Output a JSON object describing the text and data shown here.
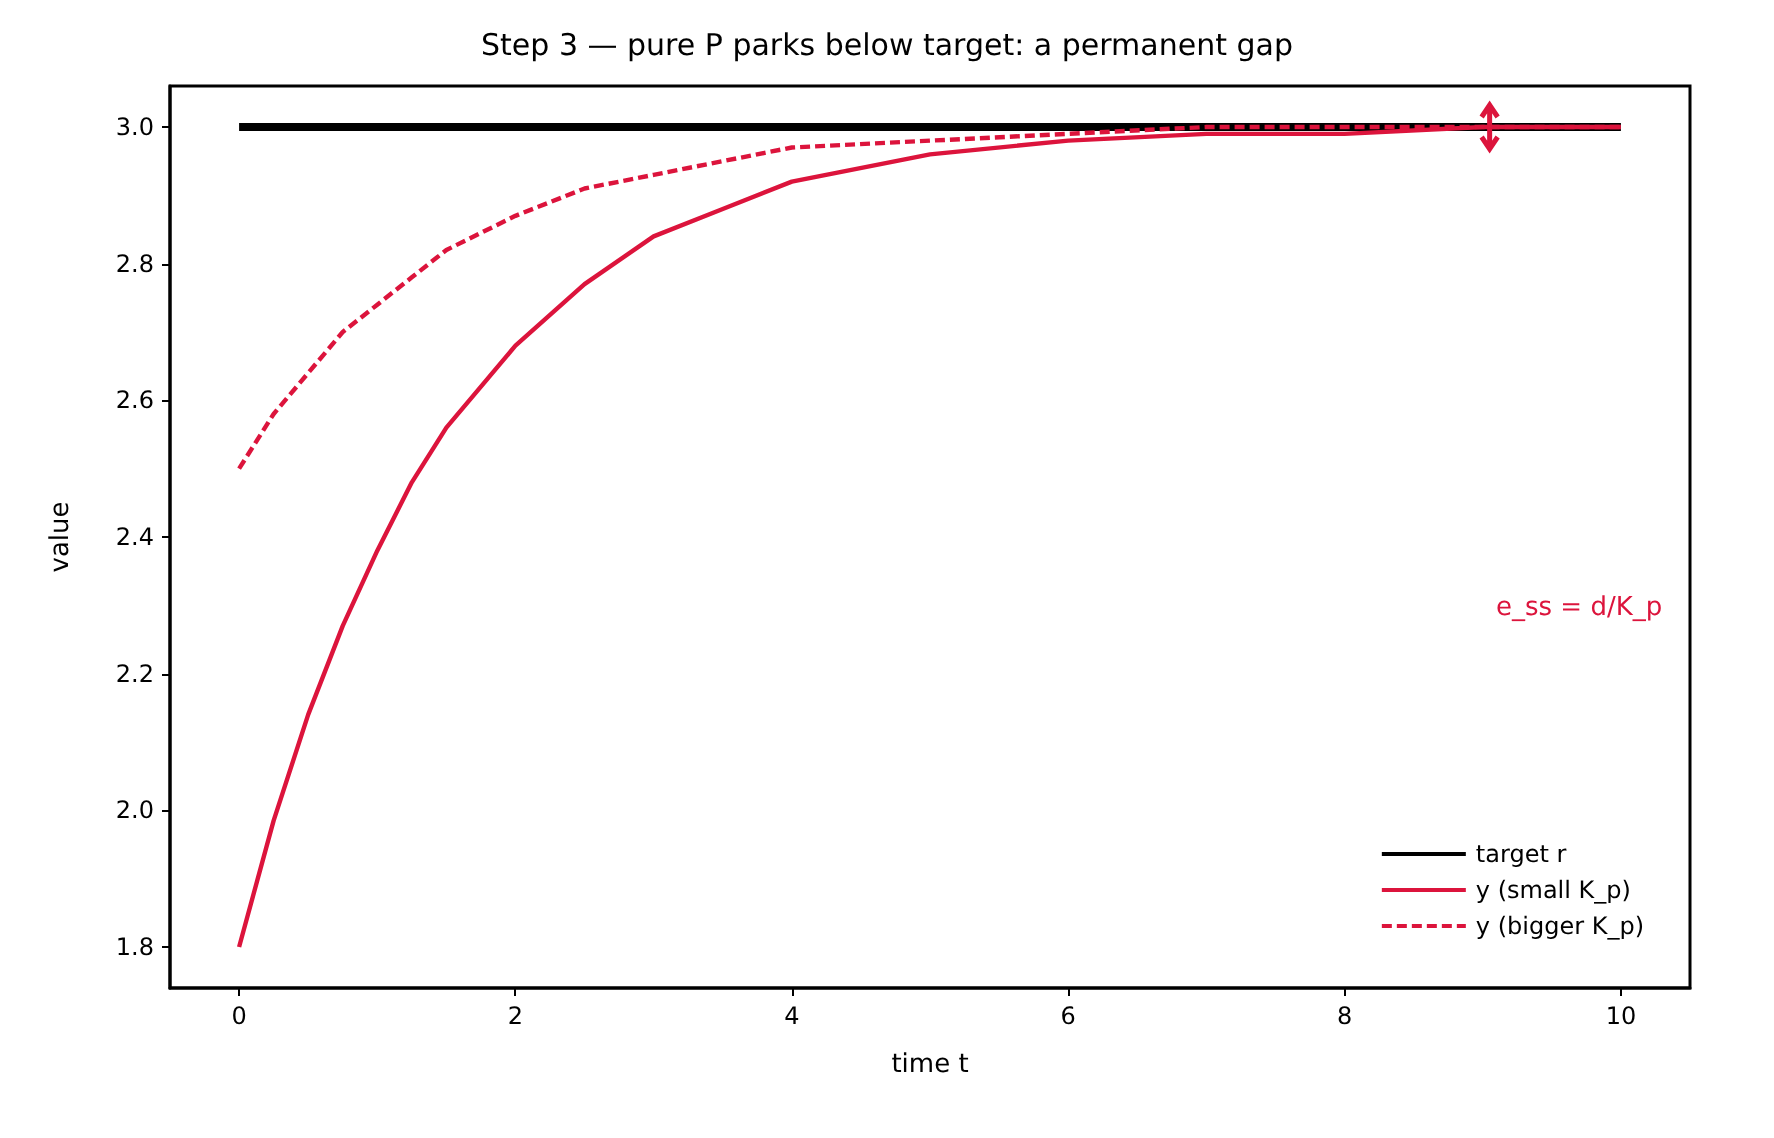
{
  "chart_data": {
    "type": "line",
    "title": "Step 3 — pure P parks below target: a permanent gap",
    "xlabel": "time t",
    "ylabel": "value",
    "xlim": [
      -0.5,
      10.5
    ],
    "xticks": [
      0,
      2,
      4,
      6,
      8,
      10
    ],
    "ylim": [
      1.74,
      3.06
    ],
    "yticks": [
      1.8,
      {
        "value": 2,
        "label": "2.0"
      },
      2.2,
      2.4,
      2.6,
      2.8,
      {
        "value": 3,
        "label": "3.0"
      }
    ],
    "grid": false,
    "legend": "bottom right",
    "marker": "none",
    "series": [
      {
        "name": "target r",
        "color": "#000000",
        "line_style": "solid",
        "x": [
          0,
          10
        ],
        "values": [
          3.0,
          3.0
        ]
      },
      {
        "name": "y (small K_p)",
        "color": "#dc143c",
        "line_style": "solid",
        "x": [
          0,
          0.25,
          0.5,
          0.75,
          1,
          1.25,
          1.5,
          2,
          2.5,
          3,
          3.5,
          4,
          5,
          6,
          7,
          8,
          9,
          10
        ],
        "values": [
          1.8,
          1.985,
          2.14,
          2.27,
          2.38,
          2.48,
          2.56,
          2.68,
          2.77,
          2.84,
          2.88,
          2.92,
          2.96,
          2.98,
          2.99,
          2.99,
          3.0,
          3.0
        ]
      },
      {
        "name": "y (bigger K_p)",
        "color": "#dc143c",
        "line_style": "dashed",
        "x": [
          0,
          0.25,
          0.5,
          0.75,
          1,
          1.25,
          1.5,
          2,
          2.5,
          3,
          3.5,
          4,
          5,
          6,
          7,
          8,
          9,
          10
        ],
        "values": [
          2.5,
          2.58,
          2.64,
          2.7,
          2.74,
          2.78,
          2.82,
          2.87,
          2.91,
          2.93,
          2.95,
          2.97,
          2.98,
          2.99,
          3.0,
          3.0,
          3.0,
          3.0
        ]
      }
    ],
    "annotations": [
      "e_ss = d/K_p"
    ]
  }
}
